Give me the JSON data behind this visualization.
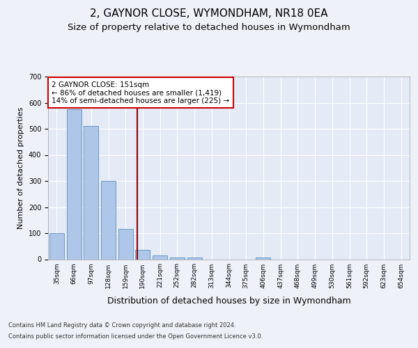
{
  "title1": "2, GAYNOR CLOSE, WYMONDHAM, NR18 0EA",
  "title2": "Size of property relative to detached houses in Wymondham",
  "xlabel": "Distribution of detached houses by size in Wymondham",
  "ylabel": "Number of detached properties",
  "categories": [
    "35sqm",
    "66sqm",
    "97sqm",
    "128sqm",
    "159sqm",
    "190sqm",
    "221sqm",
    "252sqm",
    "282sqm",
    "313sqm",
    "344sqm",
    "375sqm",
    "406sqm",
    "437sqm",
    "468sqm",
    "499sqm",
    "530sqm",
    "561sqm",
    "592sqm",
    "623sqm",
    "654sqm"
  ],
  "values": [
    100,
    575,
    510,
    300,
    115,
    37,
    15,
    8,
    6,
    0,
    0,
    0,
    6,
    0,
    0,
    0,
    0,
    0,
    0,
    0,
    0
  ],
  "bar_color": "#aec6e8",
  "bar_edge_color": "#5a8fc0",
  "vline_x": 4.67,
  "vline_color": "#8b0000",
  "annotation_text": "2 GAYNOR CLOSE: 151sqm\n← 86% of detached houses are smaller (1,419)\n14% of semi-detached houses are larger (225) →",
  "annotation_box_color": "#ffffff",
  "annotation_box_edge": "#cc0000",
  "ylim": [
    0,
    700
  ],
  "yticks": [
    0,
    100,
    200,
    300,
    400,
    500,
    600,
    700
  ],
  "footer1": "Contains HM Land Registry data © Crown copyright and database right 2024.",
  "footer2": "Contains public sector information licensed under the Open Government Licence v3.0.",
  "background_color": "#eef2f8",
  "plot_background": "#e4eaf6",
  "grid_color": "#ffffff",
  "title1_fontsize": 11,
  "title2_fontsize": 9.5,
  "tick_fontsize": 7,
  "ylabel_fontsize": 8,
  "xlabel_fontsize": 9,
  "annotation_fontsize": 7.5,
  "footer_fontsize": 6
}
